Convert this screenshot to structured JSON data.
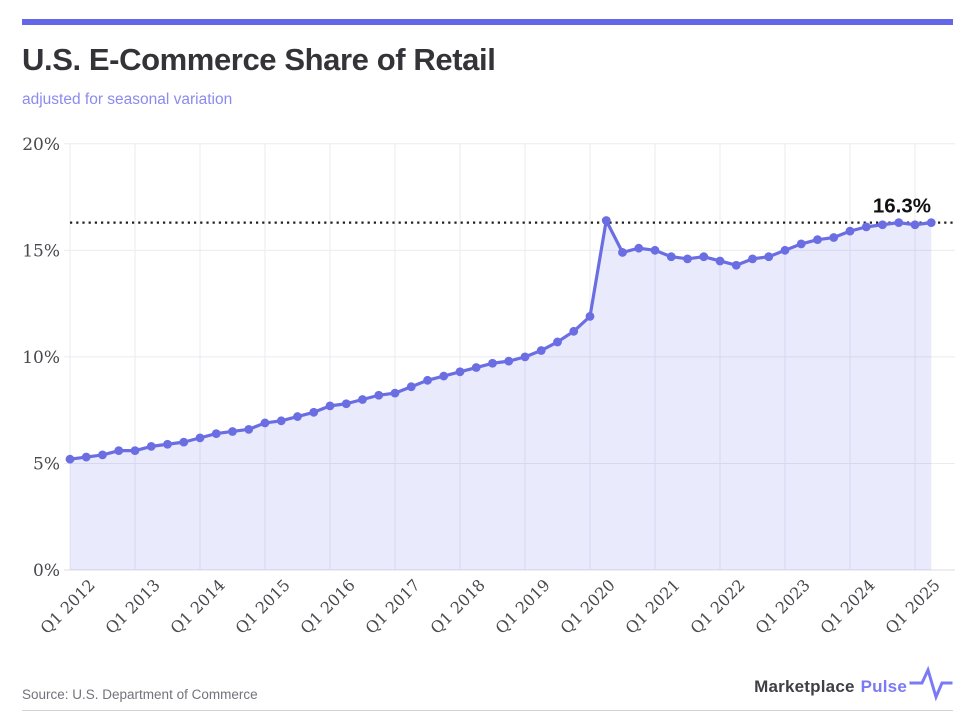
{
  "header": {
    "title": "U.S. E-Commerce Share of Retail",
    "subtitle": "adjusted for seasonal variation"
  },
  "chart_data": {
    "type": "area",
    "title": "U.S. E-Commerce Share of Retail",
    "subtitle": "adjusted for seasonal variation",
    "unit": "%",
    "xlabel": "",
    "ylabel": "",
    "ylim": [
      0,
      20
    ],
    "grid": true,
    "legend": "none",
    "x": [
      "Q1 2012",
      "Q2 2012",
      "Q3 2012",
      "Q4 2012",
      "Q1 2013",
      "Q2 2013",
      "Q3 2013",
      "Q4 2013",
      "Q1 2014",
      "Q2 2014",
      "Q3 2014",
      "Q4 2014",
      "Q1 2015",
      "Q2 2015",
      "Q3 2015",
      "Q4 2015",
      "Q1 2016",
      "Q2 2016",
      "Q3 2016",
      "Q4 2016",
      "Q1 2017",
      "Q2 2017",
      "Q3 2017",
      "Q4 2017",
      "Q1 2018",
      "Q2 2018",
      "Q3 2018",
      "Q4 2018",
      "Q1 2019",
      "Q2 2019",
      "Q3 2019",
      "Q4 2019",
      "Q1 2020",
      "Q2 2020",
      "Q3 2020",
      "Q4 2020",
      "Q1 2021",
      "Q2 2021",
      "Q3 2021",
      "Q4 2021",
      "Q1 2022",
      "Q2 2022",
      "Q3 2022",
      "Q4 2022",
      "Q1 2023",
      "Q2 2023",
      "Q3 2023",
      "Q4 2023",
      "Q1 2024",
      "Q2 2024",
      "Q3 2024",
      "Q4 2024",
      "Q1 2025",
      "Q2 2025"
    ],
    "series": [
      {
        "name": "E-commerce share of retail",
        "values": [
          5.2,
          5.3,
          5.4,
          5.6,
          5.6,
          5.8,
          5.9,
          6.0,
          6.2,
          6.4,
          6.5,
          6.6,
          6.9,
          7.0,
          7.2,
          7.4,
          7.7,
          7.8,
          8.0,
          8.2,
          8.3,
          8.6,
          8.9,
          9.1,
          9.3,
          9.5,
          9.7,
          9.8,
          10.0,
          10.3,
          10.7,
          11.2,
          11.9,
          16.4,
          14.9,
          15.1,
          15.0,
          14.7,
          14.6,
          14.7,
          14.5,
          14.3,
          14.6,
          14.7,
          15.0,
          15.3,
          15.5,
          15.6,
          15.9,
          16.1,
          16.2,
          16.3,
          16.2,
          16.3
        ]
      }
    ],
    "x_tick_labels": [
      "Q1 2012",
      "Q1 2013",
      "Q1 2014",
      "Q1 2015",
      "Q1 2016",
      "Q1 2017",
      "Q1 2018",
      "Q1 2019",
      "Q1 2020",
      "Q1 2021",
      "Q1 2022",
      "Q1 2023",
      "Q1 2024",
      "Q1 2025"
    ],
    "y_ticks": [
      {
        "value": 0,
        "label": "0%"
      },
      {
        "value": 5,
        "label": "5%"
      },
      {
        "value": 10,
        "label": "10%"
      },
      {
        "value": 15,
        "label": "15%"
      },
      {
        "value": 20,
        "label": "20%"
      }
    ],
    "reference_line": {
      "value": 16.3,
      "label": "16.3%"
    }
  },
  "colors": {
    "accent_bar": "#6467e8",
    "line": "#6b6ee3",
    "area_fill": "#6467e8",
    "subtitle_text": "#8b8af0",
    "reference_line": "#1f1f23",
    "annotation_text": "#111113",
    "tick_text": "#48484d",
    "grid_line": "#ebebf0",
    "brand_secondary": "#7a7af5"
  },
  "footer": {
    "source": "Source: U.S. Department of Commerce",
    "brand_primary": "Marketplace",
    "brand_secondary": "Pulse"
  }
}
